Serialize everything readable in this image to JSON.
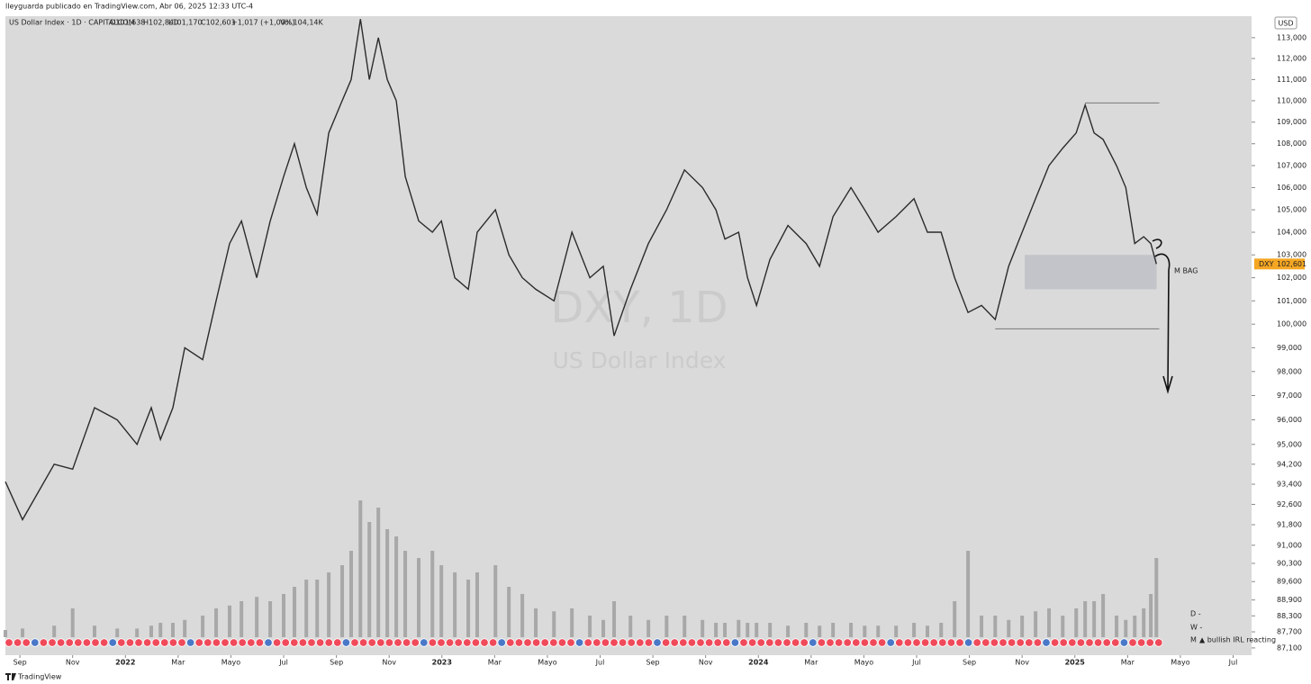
{
  "header": {
    "author": "lleyguarda publicado en TradingView.com, Abr 06, 2025 12:33 UTC-4",
    "symbol": "US Dollar Index · 1D · CAPITALCOM",
    "open": "O101,638",
    "high": "H102,840",
    "low": "L101,170",
    "close": "C102,601",
    "change": "+1,017 (+1,00%)",
    "volume": "Vol.104,14K"
  },
  "watermark": {
    "symbol": "DXY, 1D",
    "name": "US Dollar Index"
  },
  "currency": "USD",
  "footer": "TradingView",
  "chart_data": {
    "type": "line",
    "log_scale": true,
    "color": "#2b2b2b",
    "volume_color": "#a8a8a8",
    "xlim": [
      -0.55,
      46.7
    ],
    "ylim": [
      86.83,
      114.04
    ],
    "volume_lim": [
      0,
      100
    ],
    "xticks": [
      {
        "value": 0,
        "label": "Sep"
      },
      {
        "value": 2,
        "label": "Nov"
      },
      {
        "value": 4,
        "label": "2022"
      },
      {
        "value": 6,
        "label": "Mar"
      },
      {
        "value": 8,
        "label": "Mayo"
      },
      {
        "value": 10,
        "label": "Jul"
      },
      {
        "value": 12,
        "label": "Sep"
      },
      {
        "value": 14,
        "label": "Nov"
      },
      {
        "value": 16,
        "label": "2023"
      },
      {
        "value": 18,
        "label": "Mar"
      },
      {
        "value": 20,
        "label": "Mayo"
      },
      {
        "value": 22,
        "label": "Jul"
      },
      {
        "value": 24,
        "label": "Sep"
      },
      {
        "value": 26,
        "label": "Nov"
      },
      {
        "value": 28,
        "label": "2024"
      },
      {
        "value": 30,
        "label": "Mar"
      },
      {
        "value": 32,
        "label": "Mayo"
      },
      {
        "value": 34,
        "label": "Jul"
      },
      {
        "value": 36,
        "label": "Sep"
      },
      {
        "value": 38,
        "label": "Nov"
      },
      {
        "value": 40,
        "label": "2025"
      },
      {
        "value": 42,
        "label": "Mar"
      },
      {
        "value": 44,
        "label": "Mayo"
      },
      {
        "value": 46,
        "label": "Jul"
      }
    ],
    "yticks": [
      {
        "value": 113,
        "label": "113,000"
      },
      {
        "value": 112,
        "label": "112,000"
      },
      {
        "value": 111,
        "label": "111,000"
      },
      {
        "value": 110,
        "label": "110,000"
      },
      {
        "value": 109,
        "label": "109,000"
      },
      {
        "value": 108,
        "label": "108,000"
      },
      {
        "value": 107,
        "label": "107,000"
      },
      {
        "value": 106,
        "label": "106,000"
      },
      {
        "value": 105,
        "label": "105,000"
      },
      {
        "value": 104,
        "label": "104,000"
      },
      {
        "value": 103,
        "label": "103,000"
      },
      {
        "value": 102,
        "label": "102,000"
      },
      {
        "value": 101,
        "label": "101,000"
      },
      {
        "value": 100,
        "label": "100,000"
      },
      {
        "value": 99,
        "label": "99,000"
      },
      {
        "value": 98,
        "label": "98,000"
      },
      {
        "value": 97,
        "label": "97,000"
      },
      {
        "value": 96,
        "label": "96,000"
      },
      {
        "value": 95,
        "label": "95,000"
      },
      {
        "value": 94.2,
        "label": "94,200"
      },
      {
        "value": 93.4,
        "label": "93,400"
      },
      {
        "value": 92.6,
        "label": "92,600"
      },
      {
        "value": 91.8,
        "label": "91,800"
      },
      {
        "value": 91,
        "label": "91,000"
      },
      {
        "value": 90.3,
        "label": "90,300"
      },
      {
        "value": 89.6,
        "label": "89,600"
      },
      {
        "value": 88.9,
        "label": "88,900"
      },
      {
        "value": 88.3,
        "label": "88,300"
      },
      {
        "value": 87.7,
        "label": "87,700"
      },
      {
        "value": 87.1,
        "label": "87,100"
      }
    ],
    "x": [
      -0.55,
      0.1,
      1.3,
      2.0,
      2.83,
      3.69,
      4.44,
      4.98,
      5.33,
      5.8,
      6.25,
      6.93,
      7.44,
      7.95,
      8.4,
      8.98,
      9.49,
      10.0,
      10.41,
      10.86,
      11.27,
      11.71,
      12.22,
      12.56,
      12.91,
      13.25,
      13.59,
      13.93,
      14.27,
      14.61,
      15.12,
      15.64,
      15.98,
      16.49,
      17.0,
      17.34,
      18.03,
      18.54,
      19.05,
      19.56,
      20.25,
      20.93,
      21.61,
      22.12,
      22.53,
      23.15,
      23.83,
      24.52,
      25.2,
      25.88,
      26.39,
      26.73,
      27.25,
      27.59,
      27.93,
      28.44,
      29.12,
      29.81,
      30.32,
      30.83,
      31.51,
      32.03,
      32.54,
      33.22,
      33.9,
      34.41,
      34.93,
      35.44,
      35.95,
      36.46,
      36.98,
      37.49,
      38.0,
      38.51,
      39.02,
      39.54,
      40.05,
      40.39,
      40.73,
      41.07,
      41.58,
      41.93,
      42.27,
      42.61,
      42.88,
      43.09
    ],
    "values": [
      93.5,
      92,
      94.2,
      94,
      96.5,
      96,
      95,
      96.5,
      95.2,
      96.5,
      99,
      98.5,
      101,
      103.5,
      104.5,
      102,
      104.5,
      106.5,
      108,
      106,
      104.8,
      108.5,
      110,
      111,
      113.9,
      111,
      113,
      111,
      110,
      106.5,
      104.5,
      104,
      104.5,
      102,
      101.5,
      104,
      105,
      103,
      102,
      101.5,
      101,
      104,
      102,
      102.5,
      99.5,
      101.5,
      103.5,
      105,
      106.8,
      106,
      105,
      103.7,
      104,
      102,
      100.8,
      102.8,
      104.3,
      103.5,
      102.5,
      104.7,
      106,
      105,
      104,
      104.7,
      105.5,
      104,
      104,
      102,
      100.5,
      100.8,
      100.2,
      102.5,
      104,
      105.5,
      107,
      107.8,
      108.5,
      109.8,
      108.5,
      108.2,
      107,
      106,
      103.5,
      103.8,
      103.5,
      102.601
    ],
    "volume": [
      5,
      6,
      8,
      20,
      8,
      6,
      6,
      8,
      10,
      10,
      12,
      15,
      20,
      22,
      25,
      28,
      25,
      30,
      35,
      40,
      40,
      45,
      50,
      60,
      95,
      80,
      90,
      75,
      70,
      60,
      55,
      60,
      50,
      45,
      40,
      45,
      50,
      35,
      30,
      20,
      18,
      20,
      15,
      12,
      25,
      15,
      12,
      15,
      15,
      12,
      10,
      10,
      12,
      10,
      10,
      10,
      8,
      10,
      8,
      10,
      10,
      8,
      8,
      8,
      10,
      8,
      10,
      25,
      60,
      15,
      15,
      12,
      15,
      18,
      20,
      15,
      20,
      25,
      25,
      30,
      15,
      12,
      15,
      20,
      30,
      55
    ],
    "last": {
      "name": "DXY",
      "value": 102.601,
      "label": "102,601"
    },
    "zone": {
      "label": "M BAG",
      "x": [
        38.1,
        43.1
      ],
      "y": [
        101.5,
        103
      ]
    },
    "levels": [
      {
        "x": [
          40.39,
          43.2
        ],
        "y": 109.9
      },
      {
        "x": [
          36.98,
          43.2
        ],
        "y": 99.8
      }
    ],
    "notes": [
      "D  -",
      "W  -",
      "M",
      " ▲ bullish IRL reacting"
    ]
  }
}
